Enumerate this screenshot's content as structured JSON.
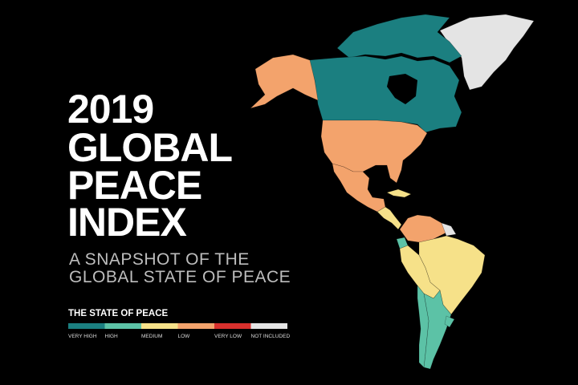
{
  "title_lines": [
    "2019",
    "GLOBAL",
    "PEACE",
    "INDEX"
  ],
  "subtitle_lines": [
    "A SNAPSHOT OF THE",
    "GLOBAL STATE OF PEACE"
  ],
  "legend": {
    "title": "THE STATE OF PEACE",
    "items": [
      {
        "label": "VERY HIGH",
        "color": "#1b7f80"
      },
      {
        "label": "HIGH",
        "color": "#5cc2a6"
      },
      {
        "label": "MEDIUM",
        "color": "#f6e189"
      },
      {
        "label": "LOW",
        "color": "#f3a36c"
      },
      {
        "label": "VERY LOW",
        "color": "#d8302d"
      },
      {
        "label": "NOT INCLUDED",
        "color": "#e4e4e4"
      }
    ]
  }
}
